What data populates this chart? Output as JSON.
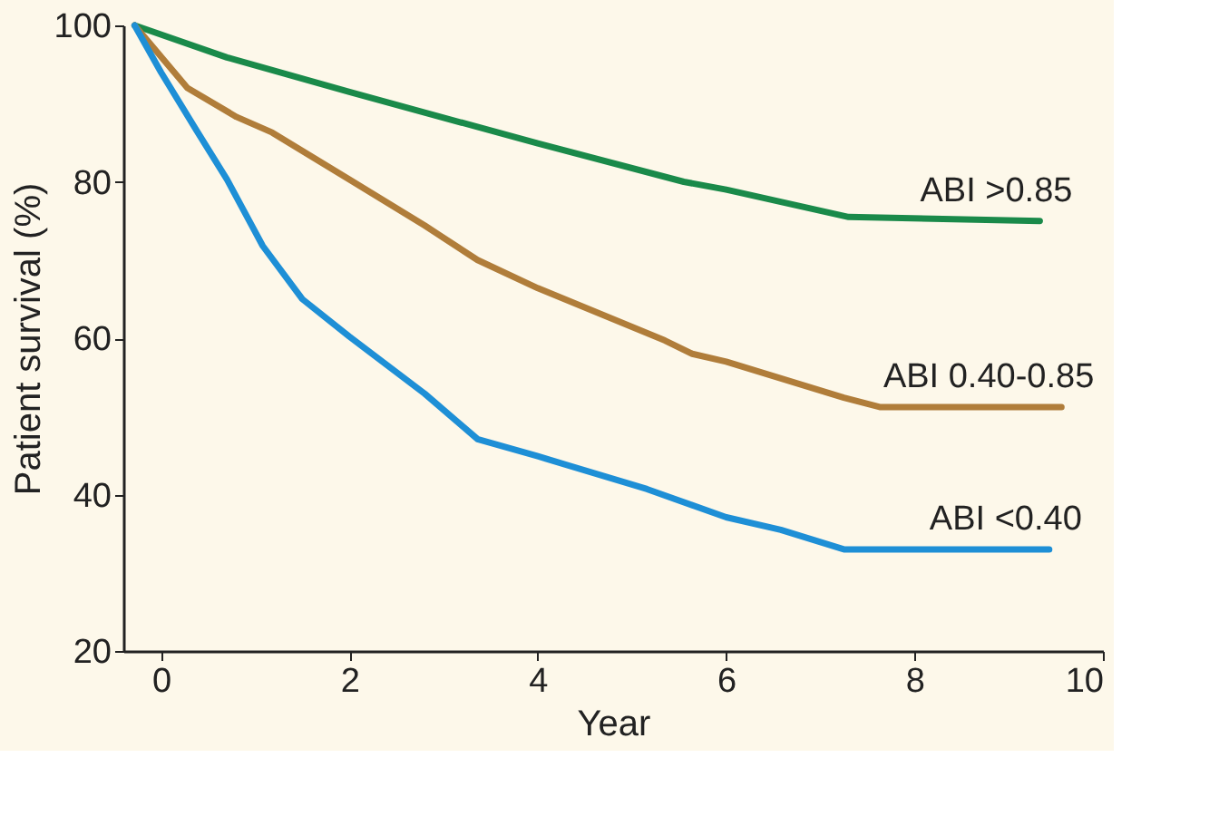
{
  "chart_data": {
    "type": "line",
    "xlabel": "Year",
    "ylabel": "Patient survival (%)",
    "xlim": [
      -0.4,
      10
    ],
    "ylim": [
      20,
      100
    ],
    "xticks": [
      0,
      2,
      4,
      6,
      8,
      10
    ],
    "yticks": [
      20,
      40,
      60,
      80,
      100
    ],
    "grid": false,
    "legend": false,
    "marker": "none",
    "line_style": "solid",
    "series": [
      {
        "name": "ABI >0.85",
        "color": "#1a8a4a",
        "x": [
          -0.28,
          0.7,
          2,
          4,
          5.55,
          6,
          7.3,
          9.33
        ],
        "values": [
          100,
          95.9,
          91.5,
          84.9,
          80,
          79,
          75.5,
          75
        ]
      },
      {
        "name": "ABI 0.40-0.85",
        "color": "#b07d3a",
        "x": [
          -0.28,
          0.28,
          0.8,
          1.18,
          2,
          2.8,
          3.36,
          4,
          5.35,
          5.64,
          6,
          7.25,
          7.63,
          9.56
        ],
        "values": [
          100,
          92,
          88.3,
          86.3,
          80.3,
          74.4,
          70,
          66.4,
          59.7,
          58,
          57,
          52.4,
          51.2,
          51.2
        ]
      },
      {
        "name": "ABI <0.40",
        "color": "#1e8fd6",
        "x": [
          -0.28,
          0,
          0.38,
          0.7,
          1.08,
          1.5,
          2,
          2.8,
          3.36,
          4,
          5.16,
          6,
          6.58,
          7.25,
          9.43
        ],
        "values": [
          100,
          94,
          86.5,
          80.3,
          71.8,
          65,
          60.2,
          52.9,
          47.1,
          44.9,
          40.7,
          37.1,
          35.5,
          33,
          33
        ]
      }
    ]
  }
}
